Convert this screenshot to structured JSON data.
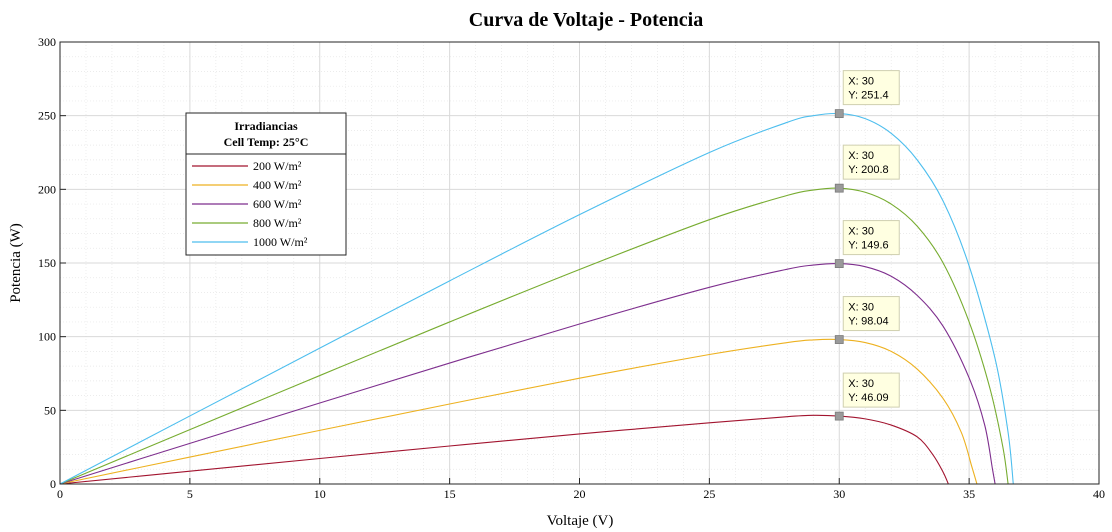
{
  "chart_data": {
    "type": "line",
    "title": "Curva de Voltaje - Potencia",
    "xlabel": "Voltaje (V)",
    "ylabel": "Potencia (W)",
    "xlim": [
      0,
      40
    ],
    "ylim": [
      0,
      300
    ],
    "xticks": [
      0,
      5,
      10,
      15,
      20,
      25,
      30,
      35,
      40
    ],
    "yticks": [
      0,
      50,
      100,
      150,
      200,
      250,
      300
    ],
    "grid": true,
    "minor_grid": true,
    "legend": {
      "title_line1": "Irradiancias",
      "title_line2": "Cell Temp: 25°C",
      "placement": "upper-left"
    },
    "series": [
      {
        "name": "200 W/m²",
        "color": "#a2142f",
        "points": [
          [
            0,
            0
          ],
          [
            5,
            8.7
          ],
          [
            10,
            17.3
          ],
          [
            15,
            25.8
          ],
          [
            20,
            34.0
          ],
          [
            25,
            41.5
          ],
          [
            28,
            45.7
          ],
          [
            29,
            46.6
          ],
          [
            30,
            46.09
          ],
          [
            31,
            44.2
          ],
          [
            32,
            40.0
          ],
          [
            33,
            32.0
          ],
          [
            33.6,
            20.0
          ],
          [
            34.0,
            8.0
          ],
          [
            34.2,
            0
          ]
        ]
      },
      {
        "name": "400 W/m²",
        "color": "#edb120",
        "points": [
          [
            0,
            0
          ],
          [
            5,
            18.3
          ],
          [
            10,
            36.4
          ],
          [
            15,
            54.3
          ],
          [
            20,
            71.8
          ],
          [
            25,
            87.9
          ],
          [
            28,
            96.0
          ],
          [
            29,
            97.8
          ],
          [
            30,
            98.04
          ],
          [
            31,
            96.0
          ],
          [
            32,
            90.0
          ],
          [
            33,
            78.0
          ],
          [
            34,
            58.0
          ],
          [
            34.7,
            35.0
          ],
          [
            35.1,
            12.0
          ],
          [
            35.3,
            0
          ]
        ]
      },
      {
        "name": "600 W/m²",
        "color": "#7e2f8e",
        "points": [
          [
            0,
            0
          ],
          [
            5,
            27.6
          ],
          [
            10,
            55.0
          ],
          [
            15,
            82.1
          ],
          [
            20,
            108.6
          ],
          [
            25,
            133.5
          ],
          [
            28,
            145.8
          ],
          [
            29,
            148.6
          ],
          [
            30,
            149.6
          ],
          [
            31,
            147.5
          ],
          [
            32,
            141.0
          ],
          [
            33,
            128.0
          ],
          [
            34,
            107.0
          ],
          [
            35,
            72.0
          ],
          [
            35.6,
            40.0
          ],
          [
            35.9,
            10.0
          ],
          [
            36.0,
            0
          ]
        ]
      },
      {
        "name": "800 W/m²",
        "color": "#77ac30",
        "points": [
          [
            0,
            0
          ],
          [
            5,
            36.9
          ],
          [
            10,
            73.6
          ],
          [
            15,
            110.0
          ],
          [
            20,
            145.6
          ],
          [
            25,
            179.4
          ],
          [
            28,
            195.9
          ],
          [
            29,
            199.5
          ],
          [
            30,
            200.8
          ],
          [
            31,
            198.0
          ],
          [
            32,
            190.0
          ],
          [
            33,
            175.0
          ],
          [
            34,
            150.0
          ],
          [
            35,
            110.0
          ],
          [
            35.8,
            65.0
          ],
          [
            36.3,
            25.0
          ],
          [
            36.5,
            0
          ]
        ]
      },
      {
        "name": "1000 W/m²",
        "color": "#4dbeee",
        "points": [
          [
            0,
            0
          ],
          [
            5,
            46.2
          ],
          [
            10,
            92.2
          ],
          [
            15,
            137.9
          ],
          [
            20,
            182.8
          ],
          [
            25,
            225.0
          ],
          [
            28,
            245.5
          ],
          [
            29,
            250.0
          ],
          [
            30,
            251.4
          ],
          [
            31,
            248.0
          ],
          [
            32,
            238.0
          ],
          [
            33,
            220.0
          ],
          [
            34,
            192.0
          ],
          [
            35,
            148.0
          ],
          [
            36,
            85.0
          ],
          [
            36.5,
            35.0
          ],
          [
            36.7,
            0
          ]
        ]
      }
    ],
    "datatips": [
      {
        "x_text": "X: 30",
        "y_text": "Y: 251.4",
        "x": 30,
        "y": 251.4
      },
      {
        "x_text": "X: 30",
        "y_text": "Y: 200.8",
        "x": 30,
        "y": 200.8
      },
      {
        "x_text": "X: 30",
        "y_text": "Y: 149.6",
        "x": 30,
        "y": 149.6
      },
      {
        "x_text": "X: 30",
        "y_text": "Y: 98.04",
        "x": 30,
        "y": 98.04
      },
      {
        "x_text": "X: 30",
        "y_text": "Y: 46.09",
        "x": 30,
        "y": 46.09
      }
    ]
  }
}
